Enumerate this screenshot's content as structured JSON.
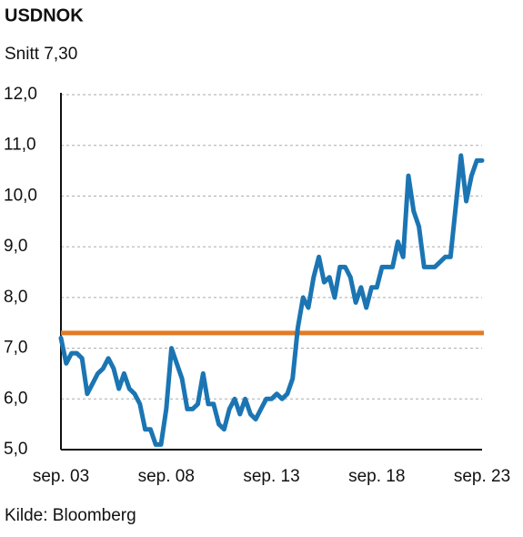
{
  "chart_data": {
    "type": "line",
    "title": "USDNOK",
    "subtitle": "Snitt 7,30",
    "source": "Kilde: Bloomberg",
    "categories": [
      "sep. 03",
      null,
      null,
      null,
      null,
      null,
      null,
      null,
      null,
      null,
      null,
      null,
      null,
      null,
      null,
      null,
      null,
      null,
      null,
      null,
      "sep. 08",
      null,
      null,
      null,
      null,
      null,
      null,
      null,
      null,
      null,
      null,
      null,
      null,
      null,
      null,
      null,
      null,
      null,
      null,
      null,
      "sep. 13",
      null,
      null,
      null,
      null,
      null,
      null,
      null,
      null,
      null,
      null,
      null,
      null,
      null,
      null,
      null,
      null,
      null,
      null,
      null,
      "sep. 18",
      null,
      null,
      null,
      null,
      null,
      null,
      null,
      null,
      null,
      null,
      null,
      null,
      null,
      null,
      null,
      null,
      null,
      null,
      null,
      "sep. 23"
    ],
    "series": [
      {
        "name": "USDNOK",
        "color": "#1b75b3",
        "values": [
          7.2,
          6.7,
          6.9,
          6.9,
          6.8,
          6.1,
          6.3,
          6.5,
          6.6,
          6.8,
          6.6,
          6.2,
          6.5,
          6.2,
          6.1,
          5.9,
          5.4,
          5.4,
          5.1,
          5.1,
          5.8,
          7.0,
          6.7,
          6.4,
          5.8,
          5.8,
          5.9,
          6.5,
          5.9,
          5.9,
          5.5,
          5.4,
          5.8,
          6.0,
          5.7,
          6.0,
          5.7,
          5.6,
          5.8,
          6.0,
          6.0,
          6.1,
          6.0,
          6.1,
          6.4,
          7.4,
          8.0,
          7.8,
          8.4,
          8.8,
          8.3,
          8.4,
          8.0,
          8.6,
          8.6,
          8.4,
          7.9,
          8.2,
          7.8,
          8.2,
          8.2,
          8.6,
          8.6,
          8.6,
          9.1,
          8.8,
          10.4,
          9.7,
          9.4,
          8.6,
          8.6,
          8.6,
          8.7,
          8.8,
          8.8,
          9.8,
          10.8,
          9.9,
          10.4,
          10.7,
          10.7
        ]
      }
    ],
    "average_line": {
      "value": 7.3,
      "color": "#e37b25"
    },
    "ylim": [
      5,
      12
    ],
    "yticks": [
      {
        "value": 5,
        "label": "5,0"
      },
      {
        "value": 6,
        "label": "6,0"
      },
      {
        "value": 7,
        "label": "7,0"
      },
      {
        "value": 8,
        "label": "8,0"
      },
      {
        "value": 9,
        "label": "9,0"
      },
      {
        "value": 10,
        "label": "10,0"
      },
      {
        "value": 11,
        "label": "11,0"
      },
      {
        "value": 12,
        "label": "12,0"
      }
    ],
    "grid": true
  }
}
